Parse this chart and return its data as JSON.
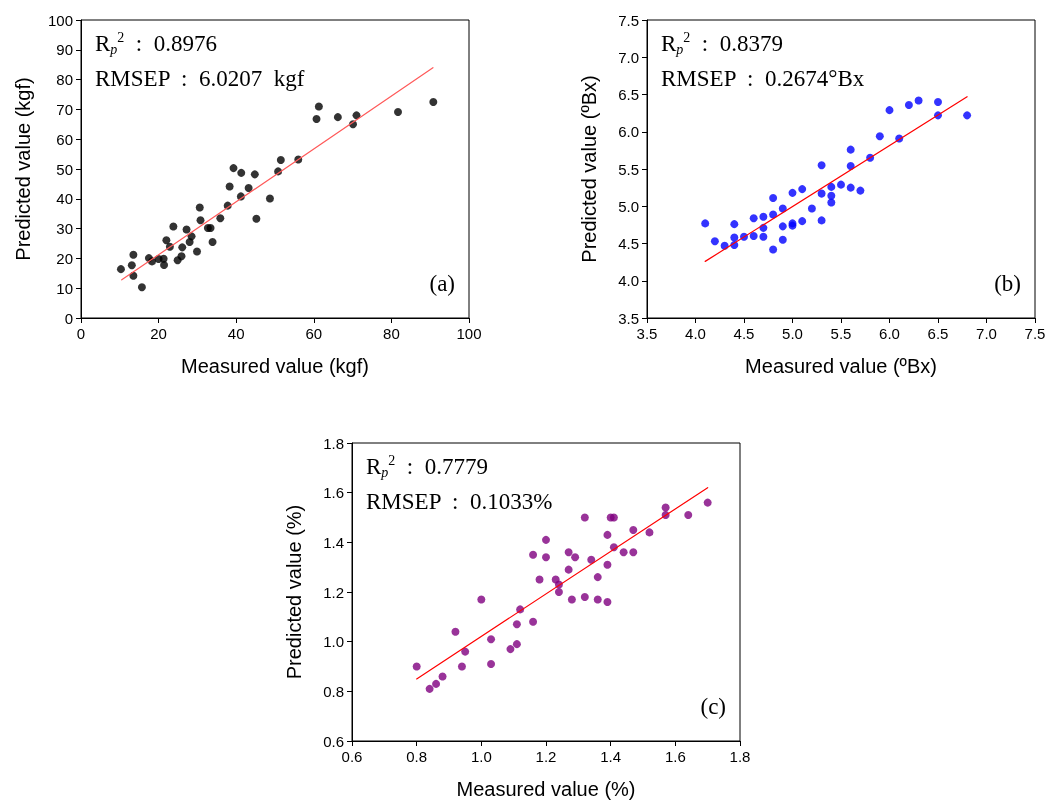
{
  "chart_data": [
    {
      "type": "scatter",
      "xlabel": "Measured value (kgf)",
      "ylabel": "Predicted value (kgf)",
      "xlim": [
        0,
        100
      ],
      "ylim": [
        0,
        100
      ],
      "xticks": [
        0,
        20,
        40,
        60,
        80,
        100
      ],
      "yticks": [
        0,
        10,
        20,
        30,
        40,
        50,
        60,
        70,
        80,
        90,
        100
      ],
      "grid": false,
      "marker": "circle",
      "annotations": [
        "R$_{p}$$^{2}$  :  0.8976",
        "RMSEP  :  6.0207  kgf",
        "(a)"
      ],
      "series": [
        {
          "color": "#000000",
          "x": [
            10.3,
            13.1,
            13.5,
            13.5,
            15.7,
            17.5,
            18.3,
            20.0,
            21.3,
            21.4,
            22.0,
            22.9,
            23.8,
            24.9,
            25.9,
            26.1,
            27.2,
            28.0,
            28.5,
            29.9,
            30.6,
            30.8,
            32.7,
            33.4,
            33.9,
            35.9,
            37.8,
            38.3,
            39.3,
            41.2,
            41.3,
            43.2,
            44.8,
            45.2,
            48.7,
            50.8,
            51.5,
            56.0,
            60.7,
            61.3,
            66.2,
            70.1,
            71.0,
            81.7,
            90.8
          ],
          "values": [
            16.4,
            17.7,
            21.2,
            14.2,
            10.3,
            20.1,
            19.0,
            19.8,
            19.9,
            17.8,
            26.1,
            23.9,
            30.7,
            19.4,
            20.7,
            23.7,
            29.7,
            25.5,
            27.4,
            22.3,
            37.1,
            32.8,
            30.2,
            30.2,
            25.5,
            33.5,
            37.7,
            44.1,
            50.3,
            40.8,
            48.7,
            43.6,
            48.2,
            33.3,
            40.1,
            49.2,
            53.0,
            53.2,
            66.8,
            71.0,
            67.4,
            65.0,
            68.0,
            69.1,
            72.5
          ]
        },
        {
          "type": "line",
          "color": "#ff5a5a",
          "marker": "none",
          "x": [
            10.5,
            90.7
          ],
          "values": [
            12.8,
            84.0
          ]
        }
      ]
    },
    {
      "type": "scatter",
      "xlabel": "Measured value (ºBx)",
      "ylabel": "Predicted value (ºBx)",
      "xlim": [
        3.5,
        7.5
      ],
      "ylim": [
        3.5,
        7.5
      ],
      "xticks": [
        3.5,
        {
          "value": 4,
          "label": "4.0"
        },
        4.5,
        {
          "value": 5,
          "label": "5.0"
        },
        5.5,
        {
          "value": 6,
          "label": "6.0"
        },
        6.5,
        {
          "value": 7,
          "label": "7.0"
        },
        7.5
      ],
      "yticks": [
        3.5,
        {
          "value": 4,
          "label": "4.0"
        },
        4.5,
        {
          "value": 5,
          "label": "5.0"
        },
        5.5,
        {
          "value": 6,
          "label": "6.0"
        },
        6.5,
        {
          "value": 7,
          "label": "7.0"
        },
        7.5
      ],
      "grid": false,
      "marker": "circle",
      "annotations": [
        "R$_{p}$$^{2}$  :  0.8379",
        "RMSEP  :  0.2674°Bx",
        "(b)"
      ],
      "series": [
        {
          "color": "#0000ff",
          "x": [
            4.1,
            4.2,
            4.3,
            4.4,
            4.4,
            4.4,
            4.5,
            4.6,
            4.6,
            4.7,
            4.7,
            4.7,
            4.8,
            4.8,
            4.8,
            4.9,
            4.9,
            4.9,
            5.0,
            5.0,
            5.0,
            5.1,
            5.1,
            5.2,
            5.3,
            5.3,
            5.3,
            5.4,
            5.4,
            5.4,
            5.5,
            5.6,
            5.6,
            5.6,
            5.7,
            5.8,
            5.9,
            6.0,
            6.1,
            6.2,
            6.3,
            6.5,
            6.5,
            6.8
          ],
          "values": [
            4.77,
            4.53,
            4.47,
            4.76,
            4.58,
            4.48,
            4.59,
            4.84,
            4.6,
            4.86,
            4.71,
            4.59,
            5.11,
            4.89,
            4.42,
            4.97,
            4.73,
            4.55,
            5.18,
            4.77,
            4.74,
            5.23,
            4.8,
            4.97,
            5.55,
            5.17,
            4.81,
            5.26,
            5.14,
            5.05,
            5.29,
            5.76,
            5.54,
            5.25,
            5.21,
            5.65,
            5.94,
            6.29,
            5.91,
            6.36,
            6.42,
            6.4,
            6.22,
            6.22
          ]
        },
        {
          "type": "line",
          "color": "#ff0000",
          "marker": "none",
          "x": [
            4.1,
            6.8
          ],
          "values": [
            4.26,
            6.47
          ]
        }
      ]
    },
    {
      "type": "scatter",
      "xlabel": "Measured value (%)",
      "ylabel": "Predicted value (%)",
      "xlim": [
        0.6,
        1.8
      ],
      "ylim": [
        0.6,
        1.8
      ],
      "xticks": [
        0.6,
        0.8,
        {
          "value": 1,
          "label": "1.0"
        },
        1.2,
        1.4,
        1.6,
        1.8
      ],
      "yticks": [
        0.6,
        0.8,
        {
          "value": 1,
          "label": "1.0"
        },
        1.2,
        1.4,
        1.6,
        1.8
      ],
      "grid": false,
      "marker": "circle",
      "annotations": [
        "R$_{p}$$^{2}$  :  0.7779",
        "RMSEP  :  0.1033%",
        "(c)"
      ],
      "series": [
        {
          "color": "#800080",
          "x": [
            0.8,
            0.84,
            0.86,
            0.88,
            0.92,
            0.94,
            0.95,
            1.0,
            1.03,
            1.03,
            1.09,
            1.11,
            1.11,
            1.12,
            1.16,
            1.16,
            1.18,
            1.2,
            1.2,
            1.23,
            1.24,
            1.24,
            1.27,
            1.27,
            1.28,
            1.29,
            1.32,
            1.32,
            1.34,
            1.36,
            1.36,
            1.39,
            1.39,
            1.39,
            1.4,
            1.41,
            1.41,
            1.44,
            1.47,
            1.47,
            1.52,
            1.57,
            1.57,
            1.64,
            1.7
          ],
          "values": [
            0.9,
            0.81,
            0.83,
            0.86,
            1.04,
            0.9,
            0.96,
            1.17,
            1.01,
            0.91,
            0.97,
            1.07,
            0.99,
            1.13,
            1.35,
            1.08,
            1.25,
            1.41,
            1.34,
            1.25,
            1.23,
            1.2,
            1.29,
            1.36,
            1.17,
            1.34,
            1.5,
            1.18,
            1.33,
            1.26,
            1.17,
            1.43,
            1.31,
            1.16,
            1.5,
            1.5,
            1.38,
            1.36,
            1.45,
            1.36,
            1.44,
            1.54,
            1.51,
            1.51,
            1.56
          ]
        },
        {
          "type": "line",
          "color": "#ff0000",
          "marker": "none",
          "x": [
            0.8,
            1.7
          ],
          "values": [
            0.85,
            1.62
          ]
        }
      ]
    }
  ]
}
